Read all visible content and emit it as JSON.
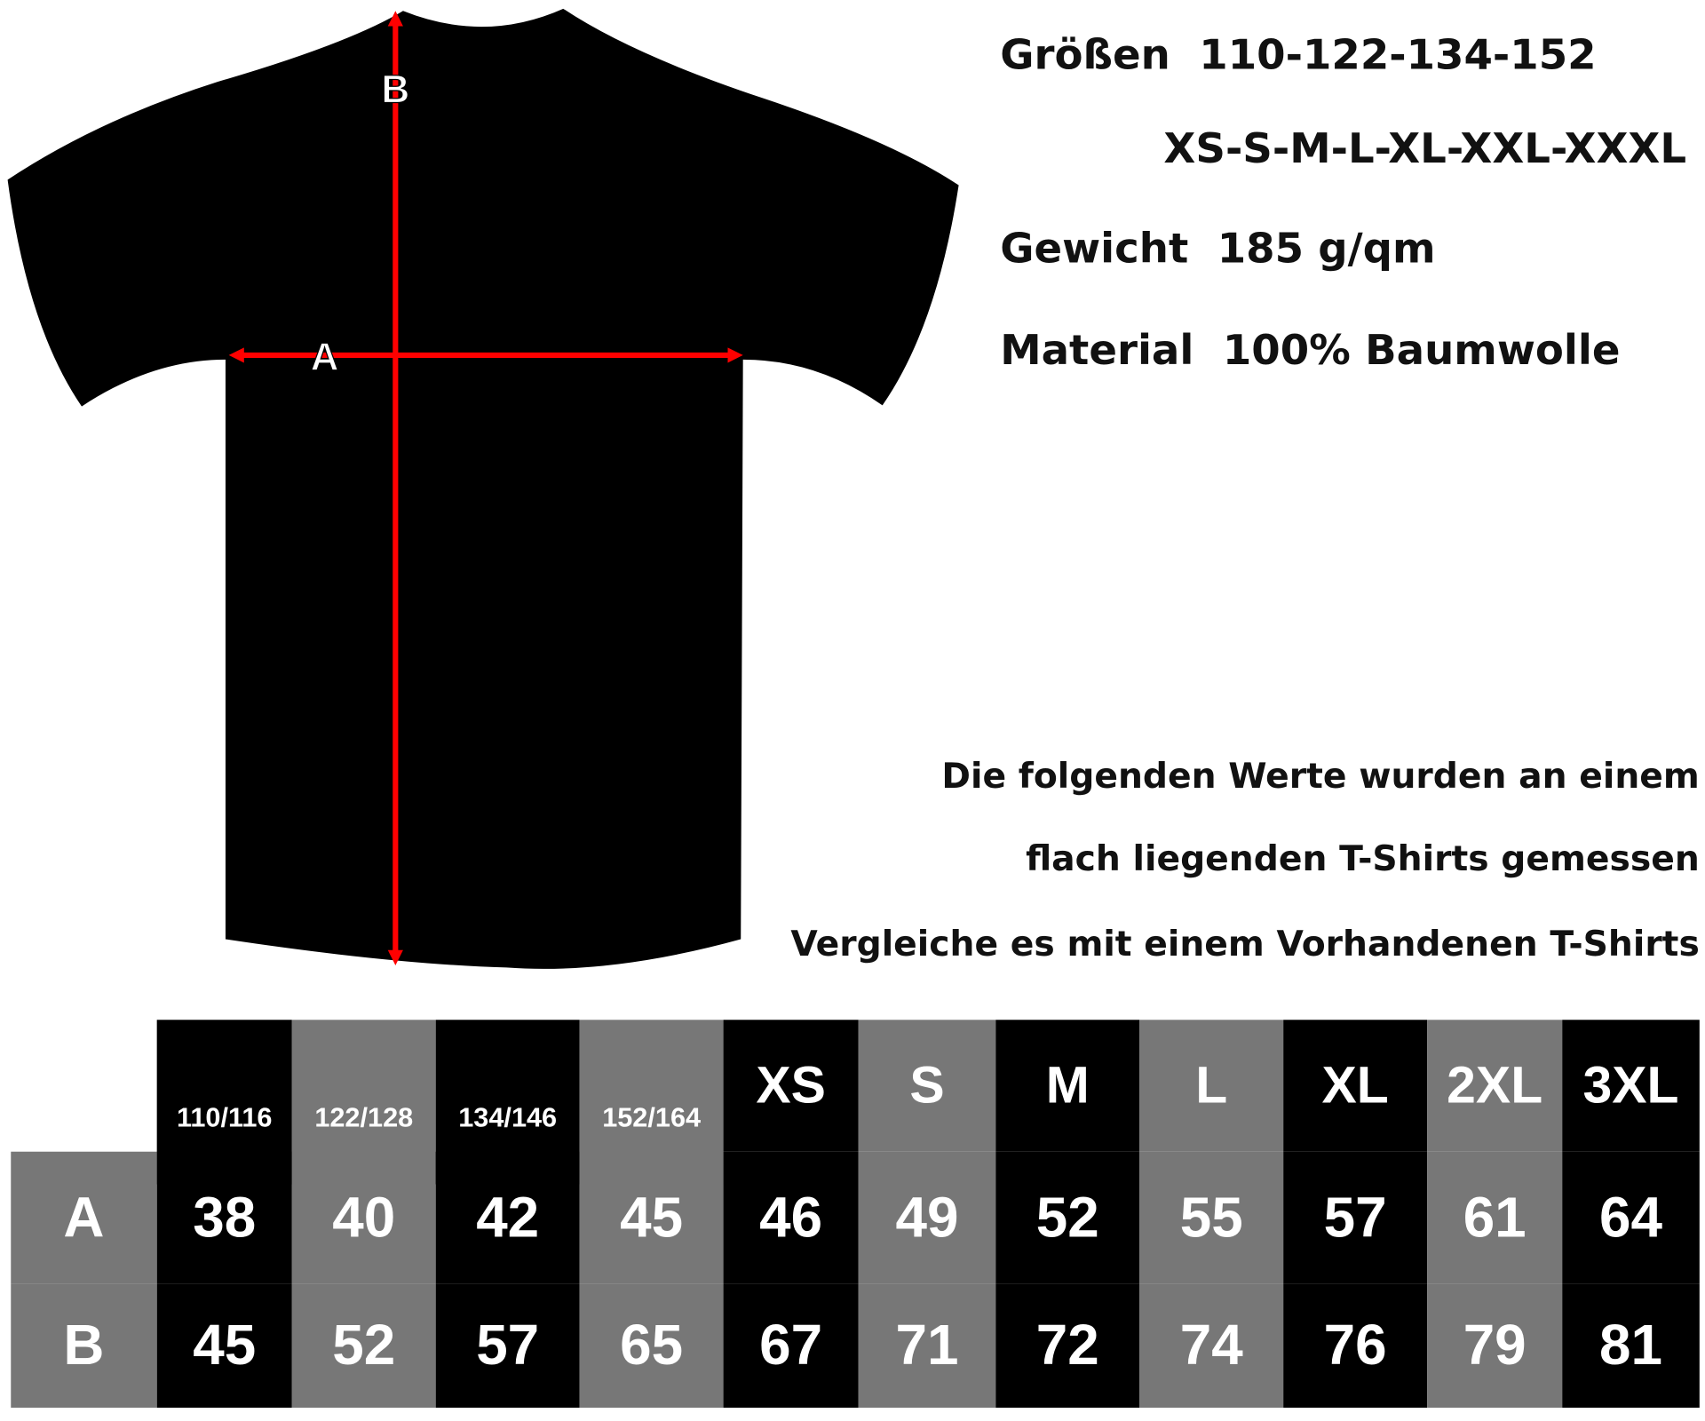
{
  "diagram": {
    "label_a": "A",
    "label_b": "B",
    "shirt_color": "#000000",
    "arrow_color": "#ff0000"
  },
  "info": {
    "sizes_label": "Größen",
    "sizes_kids": "110-122-134-152",
    "sizes_adult": "XS-S-M-L-XL-XXL-XXXL",
    "weight_label": "Gewicht",
    "weight_value": "185 g/qm",
    "material_label": "Material",
    "material_value": "100% Baumwolle"
  },
  "notes": [
    "Die folgenden Werte wurden an einem",
    "flach liegenden T-Shirts gemessen",
    "Vergleiche es mit einem Vorhandenen T-Shirts"
  ],
  "table": {
    "colors": {
      "dark": "#000000",
      "gray": "#777777"
    },
    "columns": [
      "110/116",
      "122/128",
      "134/146",
      "152/164",
      "XS",
      "S",
      "M",
      "L",
      "XL",
      "2XL",
      "3XL"
    ],
    "rows": [
      {
        "label": "A",
        "values": [
          "38",
          "40",
          "42",
          "45",
          "46",
          "49",
          "52",
          "55",
          "57",
          "61",
          "64"
        ]
      },
      {
        "label": "B",
        "values": [
          "45",
          "52",
          "57",
          "65",
          "67",
          "71",
          "72",
          "74",
          "76",
          "79",
          "81"
        ]
      }
    ]
  }
}
